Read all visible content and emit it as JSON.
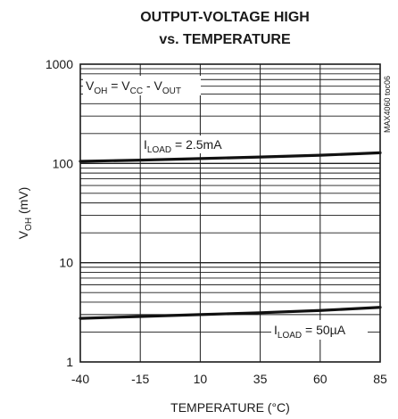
{
  "chart_data": {
    "type": "line",
    "title_line1": "OUTPUT-VOLTAGE HIGH",
    "title_line2": "vs. TEMPERATURE",
    "xlabel": "TEMPERATURE (°C)",
    "ylabel_main": "V",
    "ylabel_sub": "OH",
    "ylabel_rest": " (mV)",
    "xlim": [
      -40,
      85
    ],
    "ylim": [
      1,
      1000
    ],
    "y_scale": "log",
    "x_ticks": [
      -40,
      -15,
      10,
      35,
      60,
      85
    ],
    "y_ticks": [
      1,
      10,
      100,
      1000
    ],
    "grid": true,
    "side_label": "MAX4060 toc06",
    "equation": {
      "v": "V",
      "oh": "OH",
      "eq": " = V",
      "cc": "CC",
      "minus": " - V",
      "out": "OUT"
    },
    "series": [
      {
        "label_main": "I",
        "label_sub": "LOAD",
        "label_rest": " = 2.5mA",
        "x": [
          -40,
          -15,
          10,
          35,
          60,
          85
        ],
        "y": [
          105,
          108,
          112,
          116,
          121,
          128
        ]
      },
      {
        "label_main": "I",
        "label_sub": "LOAD",
        "label_rest": " = 50µA",
        "x": [
          -40,
          -15,
          10,
          35,
          60,
          85
        ],
        "y": [
          2.75,
          2.87,
          3.0,
          3.13,
          3.3,
          3.55
        ]
      }
    ]
  }
}
